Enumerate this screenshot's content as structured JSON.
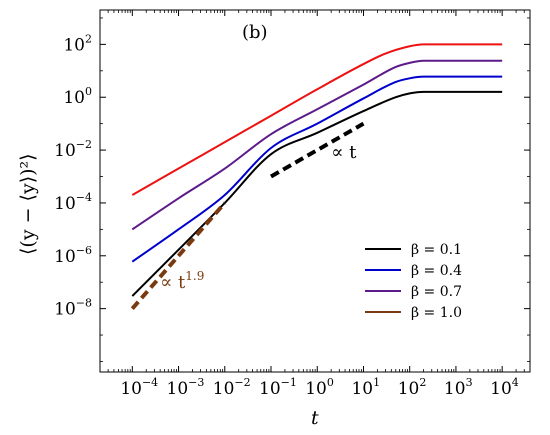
{
  "chart_data": {
    "type": "line",
    "panel_label": "(b)",
    "xlabel": "t",
    "ylabel": "⟨(y − ⟨y⟩)²⟩",
    "xscale": "log",
    "yscale": "log",
    "xlim": [
      2e-05,
      40000
    ],
    "ylim": [
      4e-11,
      2000
    ],
    "xticks": [
      {
        "value": 0.0001,
        "base": "10",
        "exp": "−4"
      },
      {
        "value": 0.001,
        "base": "10",
        "exp": "−3"
      },
      {
        "value": 0.01,
        "base": "10",
        "exp": "−2"
      },
      {
        "value": 0.1,
        "base": "10",
        "exp": "−1"
      },
      {
        "value": 1,
        "base": "10",
        "exp": "0"
      },
      {
        "value": 10,
        "base": "10",
        "exp": "1"
      },
      {
        "value": 100,
        "base": "10",
        "exp": "2"
      },
      {
        "value": 1000,
        "base": "10",
        "exp": "3"
      },
      {
        "value": 10000,
        "base": "10",
        "exp": "4"
      }
    ],
    "yticks": [
      {
        "value": 1e-08,
        "base": "10",
        "exp": "−8"
      },
      {
        "value": 1e-06,
        "base": "10",
        "exp": "−6"
      },
      {
        "value": 0.0001,
        "base": "10",
        "exp": "−4"
      },
      {
        "value": 0.01,
        "base": "10",
        "exp": "−2"
      },
      {
        "value": 1,
        "base": "10",
        "exp": "0"
      },
      {
        "value": 100,
        "base": "10",
        "exp": "2"
      }
    ],
    "legend": {
      "placement": "lower-right",
      "entries": [
        {
          "label": "β = 0.1",
          "color": "#000000"
        },
        {
          "label": "β = 0.4",
          "color": "#0000cc"
        },
        {
          "label": "β = 0.7",
          "color": "#5c1a8a"
        },
        {
          "label": "β = 1.0",
          "color": "#7a3a10"
        }
      ]
    },
    "series": [
      {
        "color": "#000000",
        "points": [
          [
            0.0001,
            3e-08
          ],
          [
            0.01,
            0.0001
          ],
          [
            0.1,
            0.007
          ],
          [
            1,
            0.045
          ],
          [
            10,
            0.3
          ],
          [
            50,
            1.0
          ],
          [
            100,
            1.4
          ],
          [
            200,
            1.6
          ],
          [
            10000,
            1.6
          ]
        ]
      },
      {
        "color": "#0000cc",
        "points": [
          [
            0.0001,
            6e-07
          ],
          [
            0.001,
            1e-05
          ],
          [
            0.01,
            0.0002
          ],
          [
            0.1,
            0.012
          ],
          [
            1,
            0.1
          ],
          [
            10,
            0.9
          ],
          [
            50,
            3.8
          ],
          [
            100,
            5.2
          ],
          [
            200,
            6.0
          ],
          [
            10000,
            6.0
          ]
        ]
      },
      {
        "color": "#5c1a8a",
        "points": [
          [
            0.0001,
            1e-05
          ],
          [
            0.001,
            0.00015
          ],
          [
            0.01,
            0.002
          ],
          [
            0.1,
            0.04
          ],
          [
            1,
            0.35
          ],
          [
            10,
            3.0
          ],
          [
            50,
            14
          ],
          [
            100,
            20
          ],
          [
            200,
            24
          ],
          [
            10000,
            24
          ]
        ]
      },
      {
        "color": "#ee1111",
        "points": [
          [
            0.0001,
            0.0002
          ],
          [
            0.001,
            0.002
          ],
          [
            0.01,
            0.02
          ],
          [
            0.1,
            0.2
          ],
          [
            1,
            2
          ],
          [
            10,
            18
          ],
          [
            30,
            45
          ],
          [
            100,
            85
          ],
          [
            200,
            100
          ],
          [
            10000,
            100
          ]
        ]
      }
    ],
    "guides": [
      {
        "text": "∝ t",
        "color": "#000000",
        "points": [
          [
            0.1,
            0.001
          ],
          [
            10,
            0.1
          ]
        ]
      },
      {
        "text": "∝ t",
        "sup": "1.9",
        "color": "#7a3a10",
        "points": [
          [
            0.0001,
            1e-08
          ],
          [
            0.01,
            0.0001
          ]
        ]
      }
    ]
  }
}
